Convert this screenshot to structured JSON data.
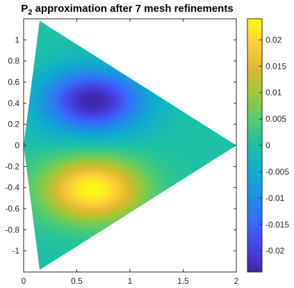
{
  "chart_data": {
    "type": "heatmap",
    "title": {
      "main": "P",
      "subscript": "2",
      "rest": " approximation after 7 mesh refinements"
    },
    "xlabel": "",
    "ylabel": "",
    "xlim": [
      0,
      2
    ],
    "ylim": [
      -1.2,
      1.2
    ],
    "x_ticks": [
      0,
      0.5,
      1,
      1.5,
      2
    ],
    "x_tick_labels": [
      "0",
      "0.5",
      "1",
      "1.5",
      "2"
    ],
    "y_ticks": [
      1,
      0.8,
      0.6,
      0.4,
      0.2,
      0,
      -0.2,
      -0.4,
      -0.6,
      -0.8,
      -1
    ],
    "y_tick_labels": [
      "1",
      "0.8",
      "0.6",
      "0.4",
      "0.2",
      "0",
      "-0.2",
      "-0.4",
      "-0.6",
      "-0.8",
      "-1"
    ],
    "domain_vertices": [
      [
        0,
        0
      ],
      [
        0.15,
        1.18
      ],
      [
        2,
        0
      ],
      [
        0.15,
        -1.18
      ]
    ],
    "extrema": {
      "min": {
        "x": 0.65,
        "y": 0.42,
        "value": -0.024
      },
      "max": {
        "x": 0.65,
        "y": -0.42,
        "value": 0.024
      }
    },
    "colorbar": {
      "colormap": "parula",
      "clim": [
        -0.024,
        0.024
      ],
      "ticks": [
        0.02,
        0.015,
        0.01,
        0.005,
        0,
        -0.005,
        -0.01,
        -0.015,
        -0.02
      ],
      "tick_labels": [
        "0.02",
        "0.015",
        "0.01",
        "0.005",
        "0",
        "-0.005",
        "-0.01",
        "-0.015",
        "-0.02"
      ]
    }
  }
}
